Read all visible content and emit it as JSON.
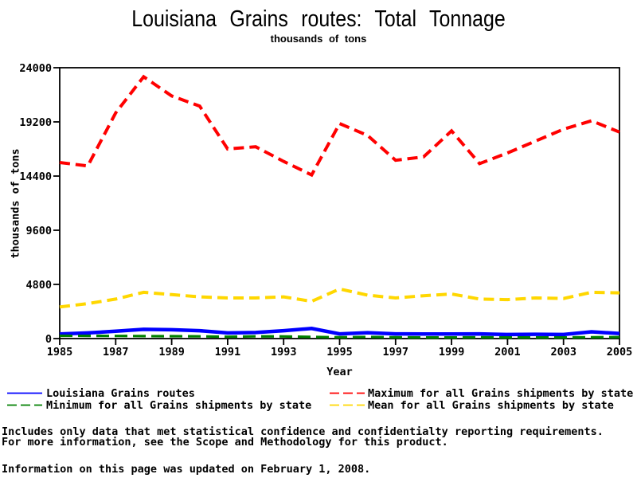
{
  "chart_data": {
    "type": "line",
    "title": "Louisiana Grains routes: Total Tonnage",
    "subtitle": "thousands of tons",
    "xlabel": "Year",
    "ylabel": "thousands of tons",
    "x": [
      1985,
      1986,
      1987,
      1988,
      1989,
      1990,
      1991,
      1992,
      1993,
      1994,
      1995,
      1996,
      1997,
      1998,
      1999,
      2000,
      2001,
      2002,
      2003,
      2004,
      2005
    ],
    "xlim": [
      1985,
      2005
    ],
    "ylim": [
      0,
      24000
    ],
    "xticks": [
      1985,
      1987,
      1989,
      1991,
      1993,
      1995,
      1997,
      1999,
      2001,
      2003,
      2005
    ],
    "yticks": [
      0,
      4800,
      9600,
      14400,
      19200,
      24000
    ],
    "grid": false,
    "legend_position": "bottom-two-columns",
    "series": [
      {
        "name": "Louisiana Grains routes",
        "color": "#0000ff",
        "style": "solid",
        "legend_row": 0,
        "legend_col": 0,
        "values": [
          400,
          500,
          650,
          820,
          780,
          700,
          500,
          540,
          700,
          900,
          420,
          520,
          420,
          400,
          400,
          420,
          360,
          380,
          360,
          600,
          450
        ]
      },
      {
        "name": "Maximum for all Grains shipments by state",
        "color": "#ff0000",
        "style": "dashed",
        "legend_row": 0,
        "legend_col": 1,
        "values": [
          15600,
          15300,
          20000,
          23200,
          21500,
          20600,
          16800,
          17000,
          15700,
          14500,
          19050,
          18000,
          15800,
          16100,
          18400,
          15500,
          16450,
          17500,
          18550,
          19300,
          18300
        ]
      },
      {
        "name": "Minimum for all Grains shipments by state",
        "color": "#008000",
        "style": "dashed",
        "legend_row": 1,
        "legend_col": 0,
        "values": [
          250,
          240,
          230,
          220,
          210,
          200,
          160,
          200,
          190,
          150,
          110,
          150,
          110,
          100,
          100,
          110,
          100,
          100,
          100,
          120,
          130
        ]
      },
      {
        "name": "Mean for all Grains shipments by state",
        "color": "#ffd700",
        "style": "dashed",
        "legend_row": 1,
        "legend_col": 1,
        "values": [
          2800,
          3100,
          3500,
          4100,
          3900,
          3700,
          3600,
          3600,
          3700,
          3300,
          4400,
          3850,
          3600,
          3800,
          3950,
          3500,
          3450,
          3600,
          3550,
          4100,
          4050
        ]
      }
    ]
  },
  "footnotes": [
    "Includes only data that met statistical confidence and confidentialty reporting requirements.",
    "For more information, see the Scope and Methodology for this product.",
    "Information on this page was updated on February 1, 2008."
  ]
}
